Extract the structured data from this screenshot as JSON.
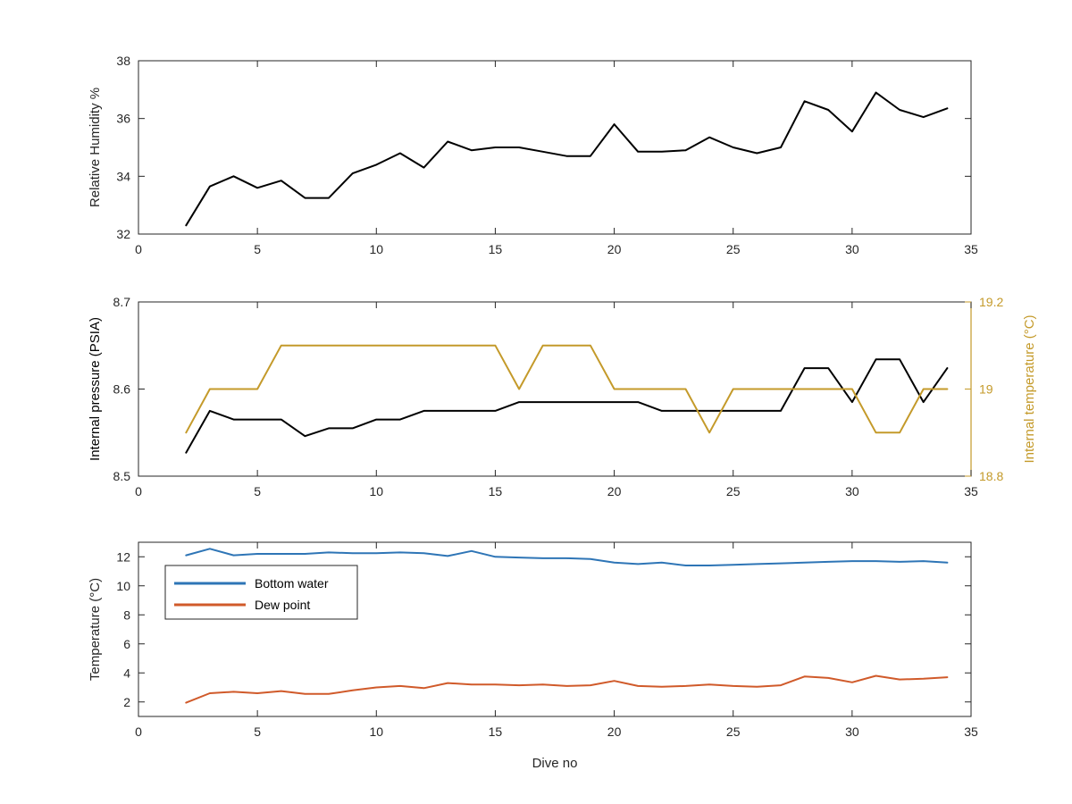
{
  "chart_data": [
    {
      "type": "line",
      "title": "",
      "xlabel": "",
      "ylabel": "Relative Humidity %",
      "xlim": [
        0,
        35
      ],
      "ylim": [
        32,
        38
      ],
      "xticks": [
        0,
        5,
        10,
        15,
        20,
        25,
        30,
        35
      ],
      "yticks": [
        32,
        34,
        36,
        38
      ],
      "grid": false,
      "x": [
        2,
        3,
        4,
        5,
        6,
        7,
        8,
        9,
        10,
        11,
        12,
        13,
        14,
        15,
        16,
        17,
        18,
        19,
        20,
        21,
        22,
        23,
        24,
        25,
        26,
        27,
        28,
        29,
        30,
        31,
        32,
        33,
        34
      ],
      "series": [
        {
          "color": "#000000",
          "values": [
            32.3,
            33.65,
            34,
            33.6,
            33.85,
            33.25,
            33.25,
            34.1,
            34.4,
            34.8,
            34.3,
            35.2,
            34.9,
            35,
            35,
            34.85,
            34.7,
            34.7,
            35.8,
            34.85,
            34.85,
            34.9,
            35.35,
            35,
            34.8,
            35,
            36.6,
            36.3,
            35.55,
            36.9,
            36.3,
            36.05,
            36.35
          ]
        }
      ]
    },
    {
      "type": "line",
      "title": "",
      "xlabel": "",
      "ylabel": "Internal pressure (PSIA)",
      "ylabel_right": "Internal temperature (°C)",
      "xlim": [
        0,
        35
      ],
      "ylim": [
        8.5,
        8.7
      ],
      "ylim_right": [
        18.8,
        19.2
      ],
      "xticks": [
        0,
        5,
        10,
        15,
        20,
        25,
        30,
        35
      ],
      "yticks": [
        8.5,
        8.6,
        8.7
      ],
      "yticks_right": [
        18.8,
        19,
        19.2
      ],
      "ytick_labels": [
        "8.5",
        "8.6",
        "8.7"
      ],
      "ytick_labels_right": [
        "18.8",
        "19",
        "19.2"
      ],
      "grid": false,
      "right_axis_color": "#c49a2a",
      "x": [
        2,
        3,
        4,
        5,
        6,
        7,
        8,
        9,
        10,
        11,
        12,
        13,
        14,
        15,
        16,
        17,
        18,
        19,
        20,
        21,
        22,
        23,
        24,
        25,
        26,
        27,
        28,
        29,
        30,
        31,
        32,
        33,
        34
      ],
      "series": [
        {
          "axis": "left",
          "color": "#000000",
          "values": [
            8.527,
            8.575,
            8.565,
            8.565,
            8.565,
            8.546,
            8.555,
            8.555,
            8.565,
            8.565,
            8.575,
            8.575,
            8.575,
            8.575,
            8.585,
            8.585,
            8.585,
            8.585,
            8.585,
            8.585,
            8.575,
            8.575,
            8.575,
            8.575,
            8.575,
            8.575,
            8.624,
            8.624,
            8.585,
            8.634,
            8.634,
            8.585,
            8.624
          ]
        },
        {
          "axis": "right",
          "color": "#c49a2a",
          "values": [
            18.9,
            19,
            19,
            19,
            19.1,
            19.1,
            19.1,
            19.1,
            19.1,
            19.1,
            19.1,
            19.1,
            19.1,
            19.1,
            19,
            19.1,
            19.1,
            19.1,
            19,
            19,
            19,
            19,
            18.9,
            19,
            19,
            19,
            19,
            19,
            19,
            18.9,
            18.9,
            19,
            19
          ]
        }
      ]
    },
    {
      "type": "line",
      "title": "",
      "xlabel": "Dive no",
      "ylabel": "Temperature (°C)",
      "xlim": [
        0,
        35
      ],
      "ylim": [
        1,
        13
      ],
      "xticks": [
        0,
        5,
        10,
        15,
        20,
        25,
        30,
        35
      ],
      "yticks": [
        2,
        4,
        6,
        8,
        10,
        12
      ],
      "grid": false,
      "legend_position": "top-left",
      "x": [
        2,
        3,
        4,
        5,
        6,
        7,
        8,
        9,
        10,
        11,
        12,
        13,
        14,
        15,
        16,
        17,
        18,
        19,
        20,
        21,
        22,
        23,
        24,
        25,
        26,
        27,
        28,
        29,
        30,
        31,
        32,
        33,
        34
      ],
      "series": [
        {
          "name": "Bottom water",
          "color": "#2e75b6",
          "values": [
            12.1,
            12.55,
            12.1,
            12.2,
            12.2,
            12.2,
            12.3,
            12.25,
            12.25,
            12.3,
            12.25,
            12.05,
            12.4,
            12,
            11.95,
            11.9,
            11.9,
            11.85,
            11.6,
            11.5,
            11.6,
            11.4,
            11.4,
            11.45,
            11.5,
            11.55,
            11.6,
            11.65,
            11.7,
            11.7,
            11.65,
            11.7,
            11.6
          ]
        },
        {
          "name": "Dew point",
          "color": "#d05a2a",
          "values": [
            1.95,
            2.6,
            2.7,
            2.6,
            2.75,
            2.55,
            2.55,
            2.8,
            3,
            3.1,
            2.95,
            3.3,
            3.2,
            3.2,
            3.15,
            3.2,
            3.1,
            3.15,
            3.45,
            3.1,
            3.05,
            3.1,
            3.2,
            3.1,
            3.05,
            3.15,
            3.75,
            3.65,
            3.35,
            3.8,
            3.55,
            3.6,
            3.7
          ]
        }
      ]
    }
  ]
}
